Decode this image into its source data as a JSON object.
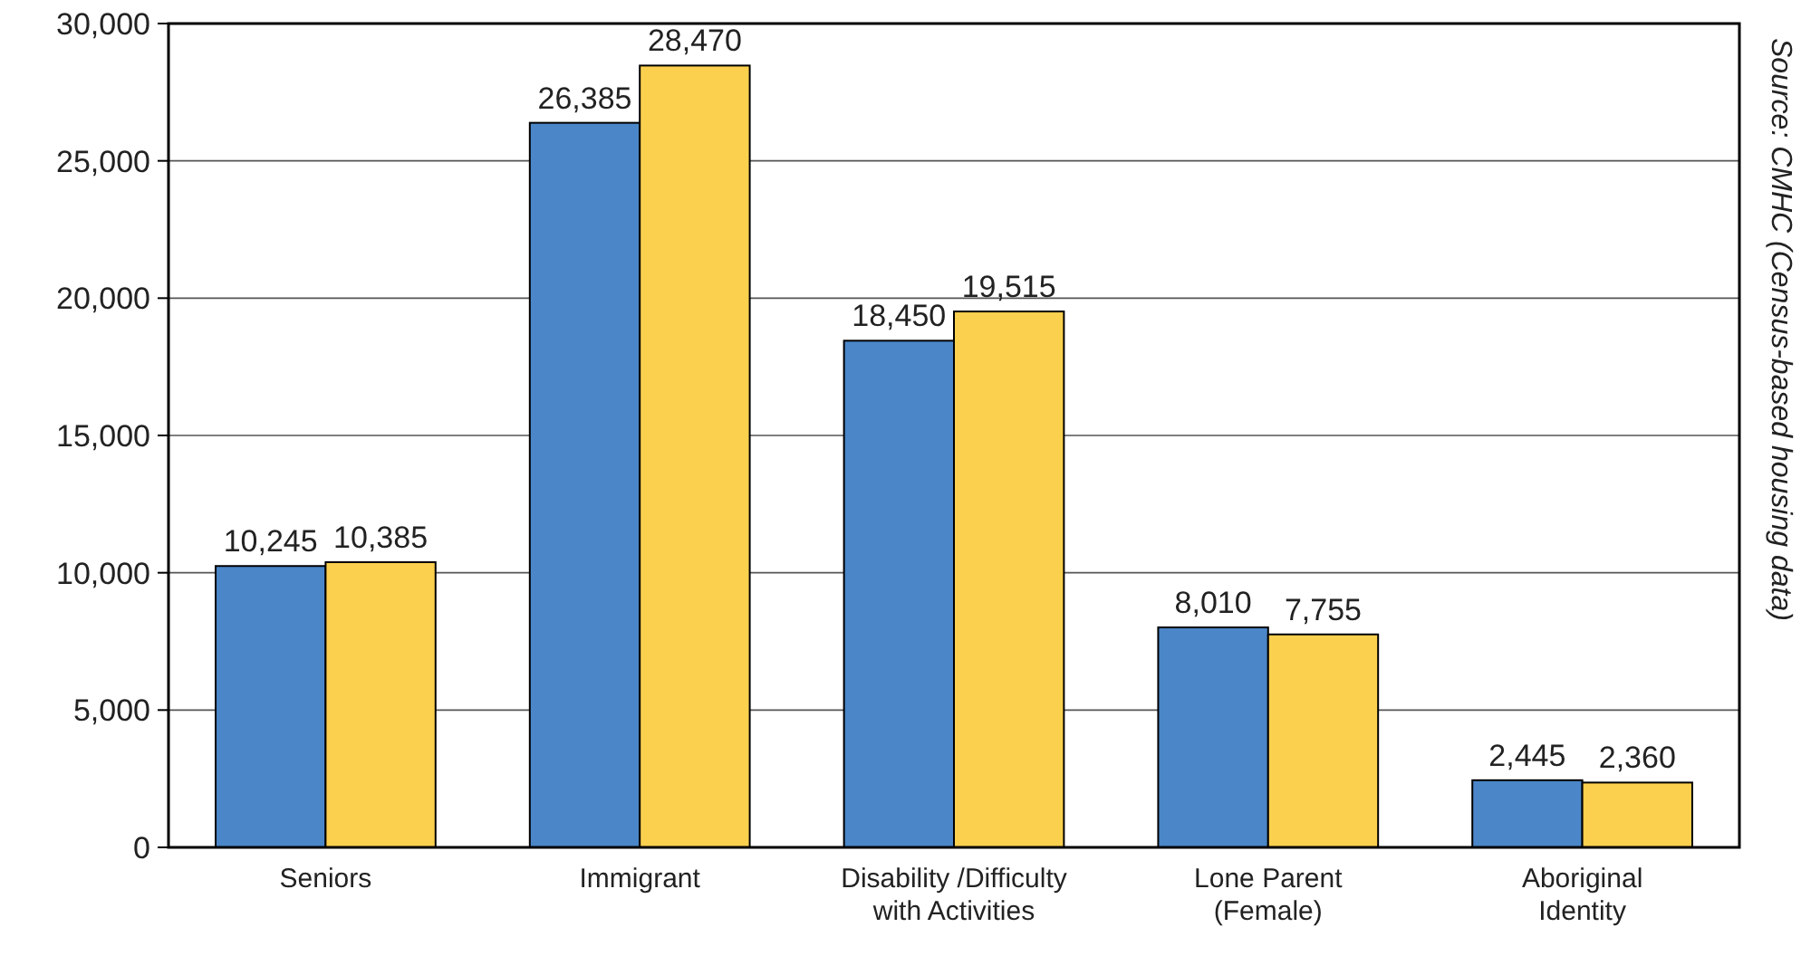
{
  "chart_data": {
    "type": "bar",
    "categories": [
      "Seniors",
      "Immigrant",
      "Disability /Difficulty\nwith Activities",
      "Lone Parent\n(Female)",
      "Aboriginal\nIdentity"
    ],
    "series": [
      {
        "color": "#4a86c8",
        "values": [
          10245,
          26385,
          18450,
          8010,
          2445
        ],
        "value_labels": [
          "10,245",
          "26,385",
          "18,450",
          "8,010",
          "2,445"
        ]
      },
      {
        "color": "#fcd04f",
        "values": [
          10385,
          28470,
          19515,
          7755,
          2360
        ],
        "value_labels": [
          "10,385",
          "28,470",
          "19,515",
          "7,755",
          "2,360"
        ]
      }
    ],
    "ylim": [
      0,
      30000
    ],
    "yticks": [
      {
        "value": 0,
        "label": "0"
      },
      {
        "value": 5000,
        "label": "5,000"
      },
      {
        "value": 10000,
        "label": "10,000"
      },
      {
        "value": 15000,
        "label": "15,000"
      },
      {
        "value": 20000,
        "label": "20,000"
      },
      {
        "value": 25000,
        "label": "25,000"
      },
      {
        "value": 30000,
        "label": "30,000"
      }
    ],
    "grid": "y",
    "annotations": [
      "Source: CMHC (Census-based housing data)"
    ]
  }
}
